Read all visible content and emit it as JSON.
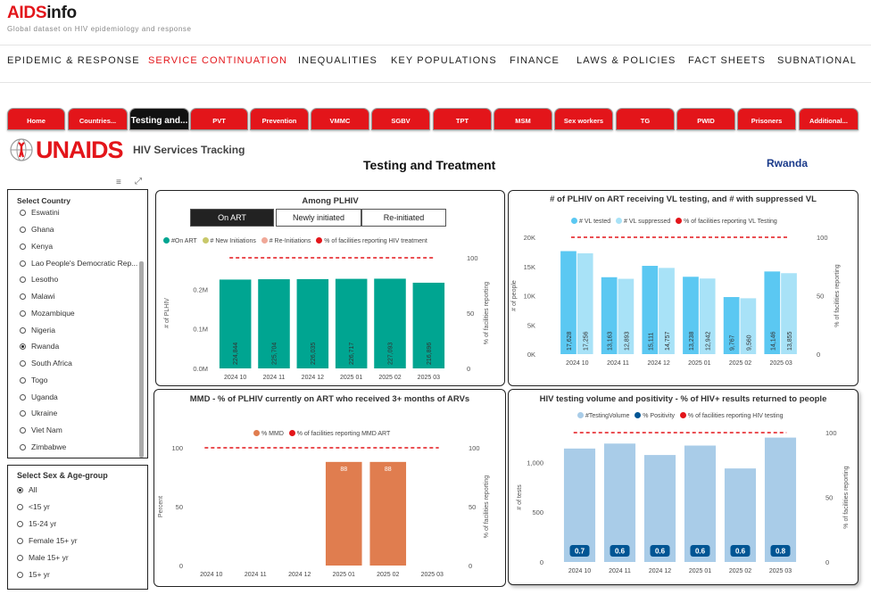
{
  "header": {
    "logo_aids": "AIDS",
    "logo_info": "info",
    "tagline": "Global dataset on HIV epidemiology and response"
  },
  "nav": [
    "EPIDEMIC & RESPONSE",
    "SERVICE CONTINUATION",
    "INEQUALITIES",
    "KEY POPULATIONS",
    "FINANCE",
    "LAWS & POLICIES",
    "FACT SHEETS",
    "SUBNATIONAL"
  ],
  "nav_active": "SERVICE CONTINUATION",
  "tabs": [
    "Home",
    "Countries...",
    "Testing and...",
    "PVT",
    "Prevention",
    "VMMC",
    "SGBV",
    "TPT",
    "MSM",
    "Sex workers",
    "TG",
    "PWID",
    "Prisoners",
    "Additional..."
  ],
  "tab_selected": "Testing and...",
  "brand": {
    "unaids": "UNAIDS",
    "subtitle": "HIV Services Tracking"
  },
  "page_title": "Testing and Treatment",
  "country_label": "Rwanda",
  "country_filter": {
    "title": "Select Country",
    "options": [
      "Eswatini",
      "Ghana",
      "Kenya",
      "Lao People's Democratic Rep...",
      "Lesotho",
      "Malawi",
      "Mozambique",
      "Nigeria",
      "Rwanda",
      "South Africa",
      "Togo",
      "Uganda",
      "Ukraine",
      "Viet Nam",
      "Zimbabwe"
    ],
    "selected": "Rwanda"
  },
  "sex_filter": {
    "title": "Select Sex & Age-group",
    "options": [
      "All",
      "<15 yr",
      "15-24 yr",
      "Female 15+ yr",
      "Male 15+ yr",
      "15+ yr"
    ],
    "selected": "All"
  },
  "colors": {
    "red": "#e3151a",
    "teal": "#00a591",
    "blue": "#5bc8f2",
    "lightblue": "#a8e2f7",
    "orange": "#e07d4f",
    "paleblue": "#a9cce8",
    "navy": "#005594"
  },
  "chart_data": [
    {
      "type": "bar",
      "title": "Among PLHIV",
      "toggles": [
        "On ART",
        "Newly initiated",
        "Re-initiated"
      ],
      "active_toggle": "On ART",
      "legend": [
        "#On ART",
        "# New Initiations",
        "# Re-Initiations",
        "% of facilities reporting HIV treatment"
      ],
      "categories": [
        "2024 10",
        "2024 11",
        "2024 12",
        "2025 01",
        "2025 02",
        "2025 03"
      ],
      "series": [
        {
          "name": "#On ART",
          "values": [
            224844,
            225704,
            226035,
            226717,
            227093,
            216896
          ],
          "labels": [
            "224,844",
            "225,704",
            "226,035",
            "226,717",
            "227,093",
            "216,896"
          ]
        }
      ],
      "ylabel": "# of PLHIV",
      "ylim": [
        0,
        280000
      ],
      "yticks": [
        "0.0M",
        "0.1M",
        "0.2M"
      ],
      "ytick_values": [
        0,
        100000,
        200000
      ],
      "y2label": "% of facilities reporting",
      "y2ticks": [
        "0",
        "50",
        "100"
      ],
      "y2_line": 100
    },
    {
      "type": "bar",
      "title": "# of PLHIV on ART receiving VL testing, and # with suppressed VL",
      "legend": [
        "# VL tested",
        "# VL suppressed",
        "% of facilities reporting VL Testing"
      ],
      "categories": [
        "2024 10",
        "2024 11",
        "2024 12",
        "2025 01",
        "2025 02",
        "2025 03"
      ],
      "series": [
        {
          "name": "# VL tested",
          "values": [
            17628,
            13163,
            15111,
            13238,
            9767,
            14146
          ],
          "labels": [
            "17,628",
            "13,163",
            "15,111",
            "13,238",
            "9,767",
            "14,146"
          ]
        },
        {
          "name": "# VL suppressed",
          "values": [
            17256,
            12893,
            14757,
            12942,
            9560,
            13855
          ],
          "labels": [
            "17,256",
            "12,893",
            "14,757",
            "12,942",
            "9,560",
            "13,855"
          ]
        }
      ],
      "ylabel": "# of people",
      "ylim": [
        0,
        20000
      ],
      "yticks": [
        "0K",
        "5K",
        "10K",
        "15K",
        "20K"
      ],
      "ytick_values": [
        0,
        5000,
        10000,
        15000,
        20000
      ],
      "y2label": "% of facilities reporting",
      "y2ticks": [
        "0",
        "50",
        "100"
      ],
      "y2_line": 100
    },
    {
      "type": "bar",
      "title": "MMD - % of PLHIV currently on ART who received 3+ months of ARVs",
      "legend": [
        "% MMD",
        "% of facilities reporting MMD ART"
      ],
      "categories": [
        "2024 10",
        "2024 11",
        "2024 12",
        "2025 01",
        "2025 02",
        "2025 03"
      ],
      "series": [
        {
          "name": "% MMD",
          "values": [
            null,
            null,
            null,
            88,
            88,
            null
          ],
          "labels": [
            "",
            "",
            "",
            "88",
            "88",
            ""
          ]
        }
      ],
      "ylabel": "Percent",
      "ylim": [
        0,
        100
      ],
      "yticks": [
        "0",
        "50",
        "100"
      ],
      "ytick_values": [
        0,
        50,
        100
      ],
      "y2label": "% of facilities reporting",
      "y2ticks": [
        "0",
        "50",
        "100"
      ],
      "y2_line": 100
    },
    {
      "type": "bar",
      "title": "HIV testing volume and positivity - % of HIV+ results returned to people",
      "legend": [
        "#TestingVolume",
        "% Positivity",
        "% of facilities reporting HIV testing"
      ],
      "categories": [
        "2024 10",
        "2024 11",
        "2024 12",
        "2025 01",
        "2025 02",
        "2025 03"
      ],
      "series": [
        {
          "name": "#TestingVolume",
          "values": [
            1140,
            1190,
            1075,
            1170,
            940,
            1250
          ]
        },
        {
          "name": "% Positivity",
          "values": [
            0.7,
            0.6,
            0.6,
            0.6,
            0.6,
            0.8
          ],
          "labels": [
            "0.7",
            "0.6",
            "0.6",
            "0.6",
            "0.6",
            "0.8"
          ]
        }
      ],
      "ylabel": "# of tests",
      "ylim": [
        0,
        1300
      ],
      "yticks": [
        "0",
        "500",
        "1,000"
      ],
      "ytick_values": [
        0,
        500,
        1000
      ],
      "y2label": "% of facilities reporting",
      "y2ticks": [
        "0",
        "50",
        "100"
      ],
      "y2_line": 100
    }
  ]
}
